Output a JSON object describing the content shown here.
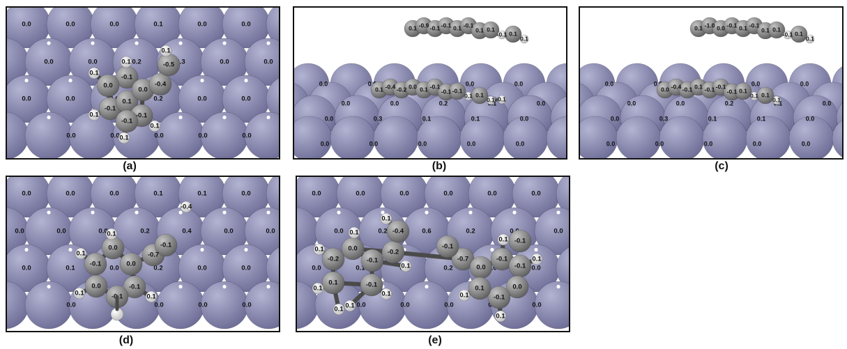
{
  "colors": {
    "metal": "#6c6c96",
    "metal_highlight": "#b3b3d2",
    "carbon": "#5d5d5d",
    "carbon_highlight": "#c4c4c4",
    "hydrogen": "#ececec",
    "label": "#111111"
  },
  "panels": [
    {
      "id": "a",
      "caption": "(a)",
      "view": "top",
      "metal_rows": [
        [
          "0.0",
          "0.0",
          "0.0",
          "0.1",
          "0.0",
          "0.0"
        ],
        [
          "0.0",
          "0.0",
          "0.2",
          "0.3",
          "0.0",
          "0.0"
        ],
        [
          "0.0",
          "0.0",
          "0.0",
          "0.2",
          "0.0",
          "0.0"
        ],
        [
          "0.0",
          "0.0",
          "0.0",
          "0.0",
          "0.0"
        ]
      ],
      "atoms": [
        {
          "el": "C",
          "label": "-0.1"
        },
        {
          "el": "C",
          "label": "0.0"
        },
        {
          "el": "C",
          "label": "-0.1"
        },
        {
          "el": "C",
          "label": "0.1"
        },
        {
          "el": "C",
          "label": "-0.1"
        },
        {
          "el": "C",
          "label": "-0.1"
        },
        {
          "el": "C",
          "label": "0.0"
        },
        {
          "el": "C",
          "label": "-0.4"
        },
        {
          "el": "C",
          "label": "-0.5"
        },
        {
          "el": "H",
          "label": "0.1"
        },
        {
          "el": "H",
          "label": "0.1"
        },
        {
          "el": "H",
          "label": "0.1"
        },
        {
          "el": "H",
          "label": "0.1"
        },
        {
          "el": "H",
          "label": "0.1"
        },
        {
          "el": "H",
          "label": "0.1"
        }
      ]
    },
    {
      "id": "b",
      "caption": "(b)",
      "view": "side",
      "metal_rows": [
        [
          "0.0",
          "0.0",
          "0.0",
          "0.0",
          "0.0"
        ],
        [
          "0.0",
          "0.0",
          "0.2",
          "0.1",
          "0.0"
        ],
        [
          "0.0",
          "0.3",
          "0.1",
          "0.1",
          "0.0"
        ],
        [
          "0.0",
          "0.0",
          "0.0",
          "0.0",
          "0.0"
        ]
      ],
      "top_molecule": [
        "0.1",
        "-0.9",
        "-0.1",
        "-0.1",
        "0.1",
        "-0.1",
        "0.1",
        "0.1",
        "-0.1",
        "0.1",
        "0.1"
      ],
      "adsorbed_molecule": [
        "0.1",
        "-0.4",
        "-0.2",
        "0.0",
        "0.1",
        "-0.1",
        "-0.1",
        "-0.1",
        "0.1",
        "0.1",
        "0.1",
        "0.1"
      ]
    },
    {
      "id": "c",
      "caption": "(c)",
      "view": "side",
      "metal_rows": [
        [
          "0.0",
          "0.0",
          "0.0",
          "0.0",
          "0.0"
        ],
        [
          "0.0",
          "0.0",
          "0.2",
          "0.1",
          "0.0"
        ],
        [
          "0.0",
          "0.3",
          "0.1",
          "0.1",
          "0.0"
        ],
        [
          "0.0",
          "0.0",
          "0.0",
          "0.0",
          "0.0"
        ]
      ],
      "top_molecule": [
        "0.1",
        "-1.0",
        "0.0",
        "-0.1",
        "0.1",
        "-0.1",
        "0.1",
        "0.1",
        "-0.1",
        "0.1",
        "0.1"
      ],
      "adsorbed_molecule": [
        "0.0",
        "-0.4",
        "-0.1",
        "0.1",
        "-0.1",
        "-0.1",
        "-0.1",
        "0.1",
        "0.1",
        "0.1",
        "0.1"
      ]
    },
    {
      "id": "d",
      "caption": "(d)",
      "view": "top",
      "metal_rows": [
        [
          "0.0",
          "0.0",
          "0.0",
          "0.1",
          "0.1",
          "0.0"
        ],
        [
          "0.0",
          "0.0",
          "0.0",
          "0.2",
          "0.4",
          "0.0",
          "0.0"
        ],
        [
          "0.0",
          "0.1",
          "0.0",
          "0.2",
          "0.0",
          "0.0"
        ],
        [
          "0.0",
          "0.0",
          "0.0",
          "0.0",
          "0.0"
        ]
      ],
      "atoms": [
        {
          "el": "C",
          "label": "-0.1"
        },
        {
          "el": "C",
          "label": "0.0"
        },
        {
          "el": "C",
          "label": "0.0"
        },
        {
          "el": "C",
          "label": "-0.1"
        },
        {
          "el": "C",
          "label": "-0.1"
        },
        {
          "el": "C",
          "label": "0.0"
        },
        {
          "el": "C",
          "label": "-0.7"
        },
        {
          "el": "C",
          "label": "-0.1"
        },
        {
          "el": "H",
          "label": "0.1"
        },
        {
          "el": "H",
          "label": "0.1"
        },
        {
          "el": "H",
          "label": "0.1"
        },
        {
          "el": "H",
          "label": "0.1"
        },
        {
          "el": "H",
          "label": "-0.4"
        }
      ]
    },
    {
      "id": "e",
      "caption": "(e)",
      "view": "top",
      "metal_rows": [
        [
          "0.0",
          "0.0",
          "0.0",
          "0.0",
          "0.0",
          "0.0"
        ],
        [
          "0.0",
          "0.2",
          "0.6",
          "0.2",
          "0.0",
          "0.0"
        ],
        [
          "0.0",
          "0.1",
          "0.0",
          "0.2",
          "0.0",
          "0.0"
        ],
        [
          "0.0",
          "0.0",
          "0.0",
          "0.0",
          "0.0"
        ]
      ],
      "atoms": [
        {
          "el": "C",
          "label": "-0.2"
        },
        {
          "el": "C",
          "label": "0.0"
        },
        {
          "el": "C",
          "label": "-0.2"
        },
        {
          "el": "C",
          "label": "-0.1"
        },
        {
          "el": "C",
          "label": "-0.1"
        },
        {
          "el": "C",
          "label": "0.1"
        },
        {
          "el": "C",
          "label": "-0.4"
        },
        {
          "el": "C",
          "label": "-0.7"
        },
        {
          "el": "C",
          "label": "-0.1"
        },
        {
          "el": "C",
          "label": "0.0"
        },
        {
          "el": "C",
          "label": "-0.1"
        },
        {
          "el": "C",
          "label": "-0.1"
        },
        {
          "el": "C",
          "label": "0.0"
        },
        {
          "el": "C",
          "label": "-0.1"
        },
        {
          "el": "C",
          "label": "0.1"
        },
        {
          "el": "C",
          "label": "-0.1"
        },
        {
          "el": "H",
          "label": "0.1"
        },
        {
          "el": "H",
          "label": "0.1"
        },
        {
          "el": "H",
          "label": "0.1"
        },
        {
          "el": "H",
          "label": "0.1"
        },
        {
          "el": "H",
          "label": "0.1"
        },
        {
          "el": "H",
          "label": "0.1"
        },
        {
          "el": "H",
          "label": "0.1"
        },
        {
          "el": "H",
          "label": "0.1"
        },
        {
          "el": "H",
          "label": "0.1"
        },
        {
          "el": "H",
          "label": "0.1"
        },
        {
          "el": "H",
          "label": "0.1"
        },
        {
          "el": "H",
          "label": "0.1"
        }
      ]
    }
  ]
}
